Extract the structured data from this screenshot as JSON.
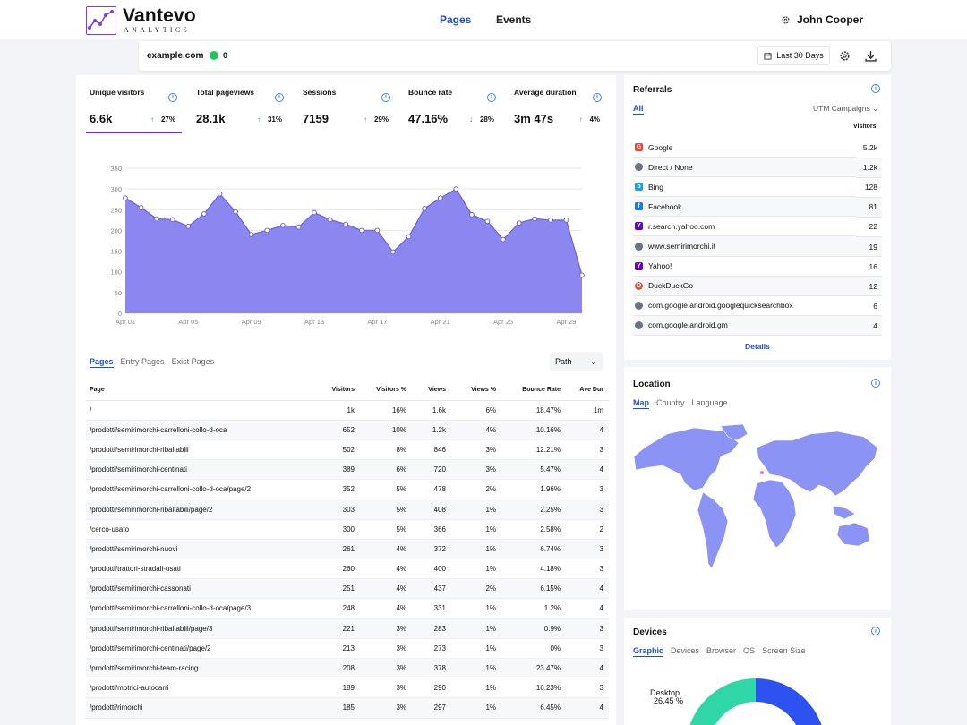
{
  "brand": {
    "name": "Vantevo",
    "sub": "ANALYTICS"
  },
  "nav": [
    {
      "label": "Pages",
      "active": true
    },
    {
      "label": "Events",
      "active": false
    }
  ],
  "user": {
    "name": "John Cooper"
  },
  "site": {
    "domain": "example.com",
    "online": "0"
  },
  "range": {
    "label": "Last 30 Days"
  },
  "stats": [
    {
      "label": "Unique visitors",
      "value": "6.6k",
      "change": "27%",
      "dir": "up"
    },
    {
      "label": "Total pageviews",
      "value": "28.1k",
      "change": "31%",
      "dir": "up"
    },
    {
      "label": "Sessions",
      "value": "7159",
      "change": "29%",
      "dir": "up"
    },
    {
      "label": "Bounce rate",
      "value": "47.16%",
      "change": "28%",
      "dir": "down"
    },
    {
      "label": "Average duration",
      "value": "3m 47s",
      "change": "4%",
      "dir": "up"
    }
  ],
  "chart_data": {
    "type": "area",
    "x": [
      "Apr 01",
      "Apr 02",
      "Apr 03",
      "Apr 04",
      "Apr 05",
      "Apr 06",
      "Apr 07",
      "Apr 08",
      "Apr 09",
      "Apr 10",
      "Apr 11",
      "Apr 12",
      "Apr 13",
      "Apr 14",
      "Apr 15",
      "Apr 16",
      "Apr 17",
      "Apr 18",
      "Apr 19",
      "Apr 20",
      "Apr 21",
      "Apr 22",
      "Apr 23",
      "Apr 24",
      "Apr 25",
      "Apr 26",
      "Apr 27",
      "Apr 28",
      "Apr 29",
      "Apr 30"
    ],
    "xticks": [
      "Apr 01",
      "Apr 05",
      "Apr 09",
      "Apr 13",
      "Apr 17",
      "Apr 21",
      "Apr 25",
      "Apr 29"
    ],
    "series": [
      {
        "values": [
          278,
          255,
          228,
          226,
          210,
          240,
          288,
          245,
          190,
          200,
          212,
          208,
          243,
          226,
          215,
          200,
          200,
          148,
          185,
          253,
          278,
          300,
          238,
          222,
          178,
          218,
          228,
          225,
          225,
          92
        ]
      }
    ],
    "yticks": [
      0,
      50,
      100,
      150,
      200,
      250,
      300,
      350
    ],
    "ylim": [
      0,
      350
    ],
    "color": "#8b86f0",
    "line_color": "#6d67d8"
  },
  "page_tabs": [
    "Pages",
    "Entry Pages",
    "Exist Pages"
  ],
  "path_select": "Path",
  "pages_table": {
    "headers": [
      "Page",
      "Visitors",
      "Visitors %",
      "Views",
      "Views %",
      "Bounce Rate",
      "Ave Dur"
    ],
    "rows": [
      [
        "/",
        "1k",
        "16%",
        "1.6k",
        "6%",
        "18.47%",
        "1m"
      ],
      [
        "/prodotti/semirimorchi-carrelloni-collo-d-oca",
        "652",
        "10%",
        "1.2k",
        "4%",
        "10.16%",
        "4"
      ],
      [
        "/prodotti/semirimorchi-ribaltabili",
        "502",
        "8%",
        "846",
        "3%",
        "12.21%",
        "3"
      ],
      [
        "/prodotti/semirimorchi-centinati",
        "389",
        "6%",
        "720",
        "3%",
        "5.47%",
        "4"
      ],
      [
        "/prodotti/semirimorchi-carrelloni-collo-d-oca/page/2",
        "352",
        "5%",
        "478",
        "2%",
        "1.96%",
        "3"
      ],
      [
        "/prodotti/semirimorchi-ribaltabili/page/2",
        "303",
        "5%",
        "408",
        "1%",
        "2.25%",
        "3"
      ],
      [
        "/cerco-usato",
        "300",
        "5%",
        "366",
        "1%",
        "2.58%",
        "2"
      ],
      [
        "/prodotti/semirimorchi-nuovi",
        "261",
        "4%",
        "372",
        "1%",
        "6.74%",
        "3"
      ],
      [
        "/prodotti/trattori-stradali-usati",
        "260",
        "4%",
        "400",
        "1%",
        "4.18%",
        "3"
      ],
      [
        "/prodotti/semirimorchi-cassonati",
        "251",
        "4%",
        "437",
        "2%",
        "6.15%",
        "4"
      ],
      [
        "/prodotti/semirimorchi-carrelloni-collo-d-oca/page/3",
        "248",
        "4%",
        "331",
        "1%",
        "1.2%",
        "4"
      ],
      [
        "/prodotti/semirimorchi-ribaltabili/page/3",
        "221",
        "3%",
        "283",
        "1%",
        "0.9%",
        "3"
      ],
      [
        "/prodotti/semirimorchi-centinati/page/2",
        "213",
        "3%",
        "273",
        "1%",
        "0%",
        "3"
      ],
      [
        "/prodotti/semirimorchi-team-racing",
        "208",
        "3%",
        "378",
        "1%",
        "23.47%",
        "4"
      ],
      [
        "/prodotti/motrici-autocarri",
        "189",
        "3%",
        "290",
        "1%",
        "16.23%",
        "3"
      ],
      [
        "/prodotti/rimorchi",
        "185",
        "3%",
        "297",
        "1%",
        "6.45%",
        "4"
      ]
    ]
  },
  "referrals": {
    "title": "Referrals",
    "tab": "All",
    "utm": "UTM Campaigns",
    "col": "Visitors",
    "rows": [
      {
        "name": "Google",
        "value": "5.2k",
        "icon": "google-icon",
        "color": "#ea4335"
      },
      {
        "name": "Direct / None",
        "value": "1.2k",
        "icon": "globe-icon",
        "color": "#6b7280"
      },
      {
        "name": "Bing",
        "value": "128",
        "icon": "bing-icon",
        "color": "#0ea5e9"
      },
      {
        "name": "Facebook",
        "value": "81",
        "icon": "facebook-icon",
        "color": "#1877f2"
      },
      {
        "name": "r.search.yahoo.com",
        "value": "22",
        "icon": "yahoo-icon",
        "color": "#6001d2"
      },
      {
        "name": "www.semirimorchi.it",
        "value": "19",
        "icon": "globe-icon",
        "color": "#6b7280"
      },
      {
        "name": "Yahoo!",
        "value": "16",
        "icon": "yahoo-icon",
        "color": "#6001d2"
      },
      {
        "name": "DuckDuckGo",
        "value": "12",
        "icon": "duckduckgo-icon",
        "color": "#de5833"
      },
      {
        "name": "com.google.android.googlequicksearchbox",
        "value": "6",
        "icon": "globe-icon",
        "color": "#6b7280"
      },
      {
        "name": "com.google.android.gm",
        "value": "4",
        "icon": "globe-icon",
        "color": "#6b7280"
      }
    ],
    "details": "Details"
  },
  "location": {
    "title": "Location",
    "tabs": [
      "Map",
      "Country",
      "Language"
    ]
  },
  "devices": {
    "title": "Devices",
    "tabs": [
      "Graphic",
      "Devices",
      "Browser",
      "OS",
      "Screen Size"
    ],
    "label": "Desktop",
    "pct": "26.45 %"
  }
}
